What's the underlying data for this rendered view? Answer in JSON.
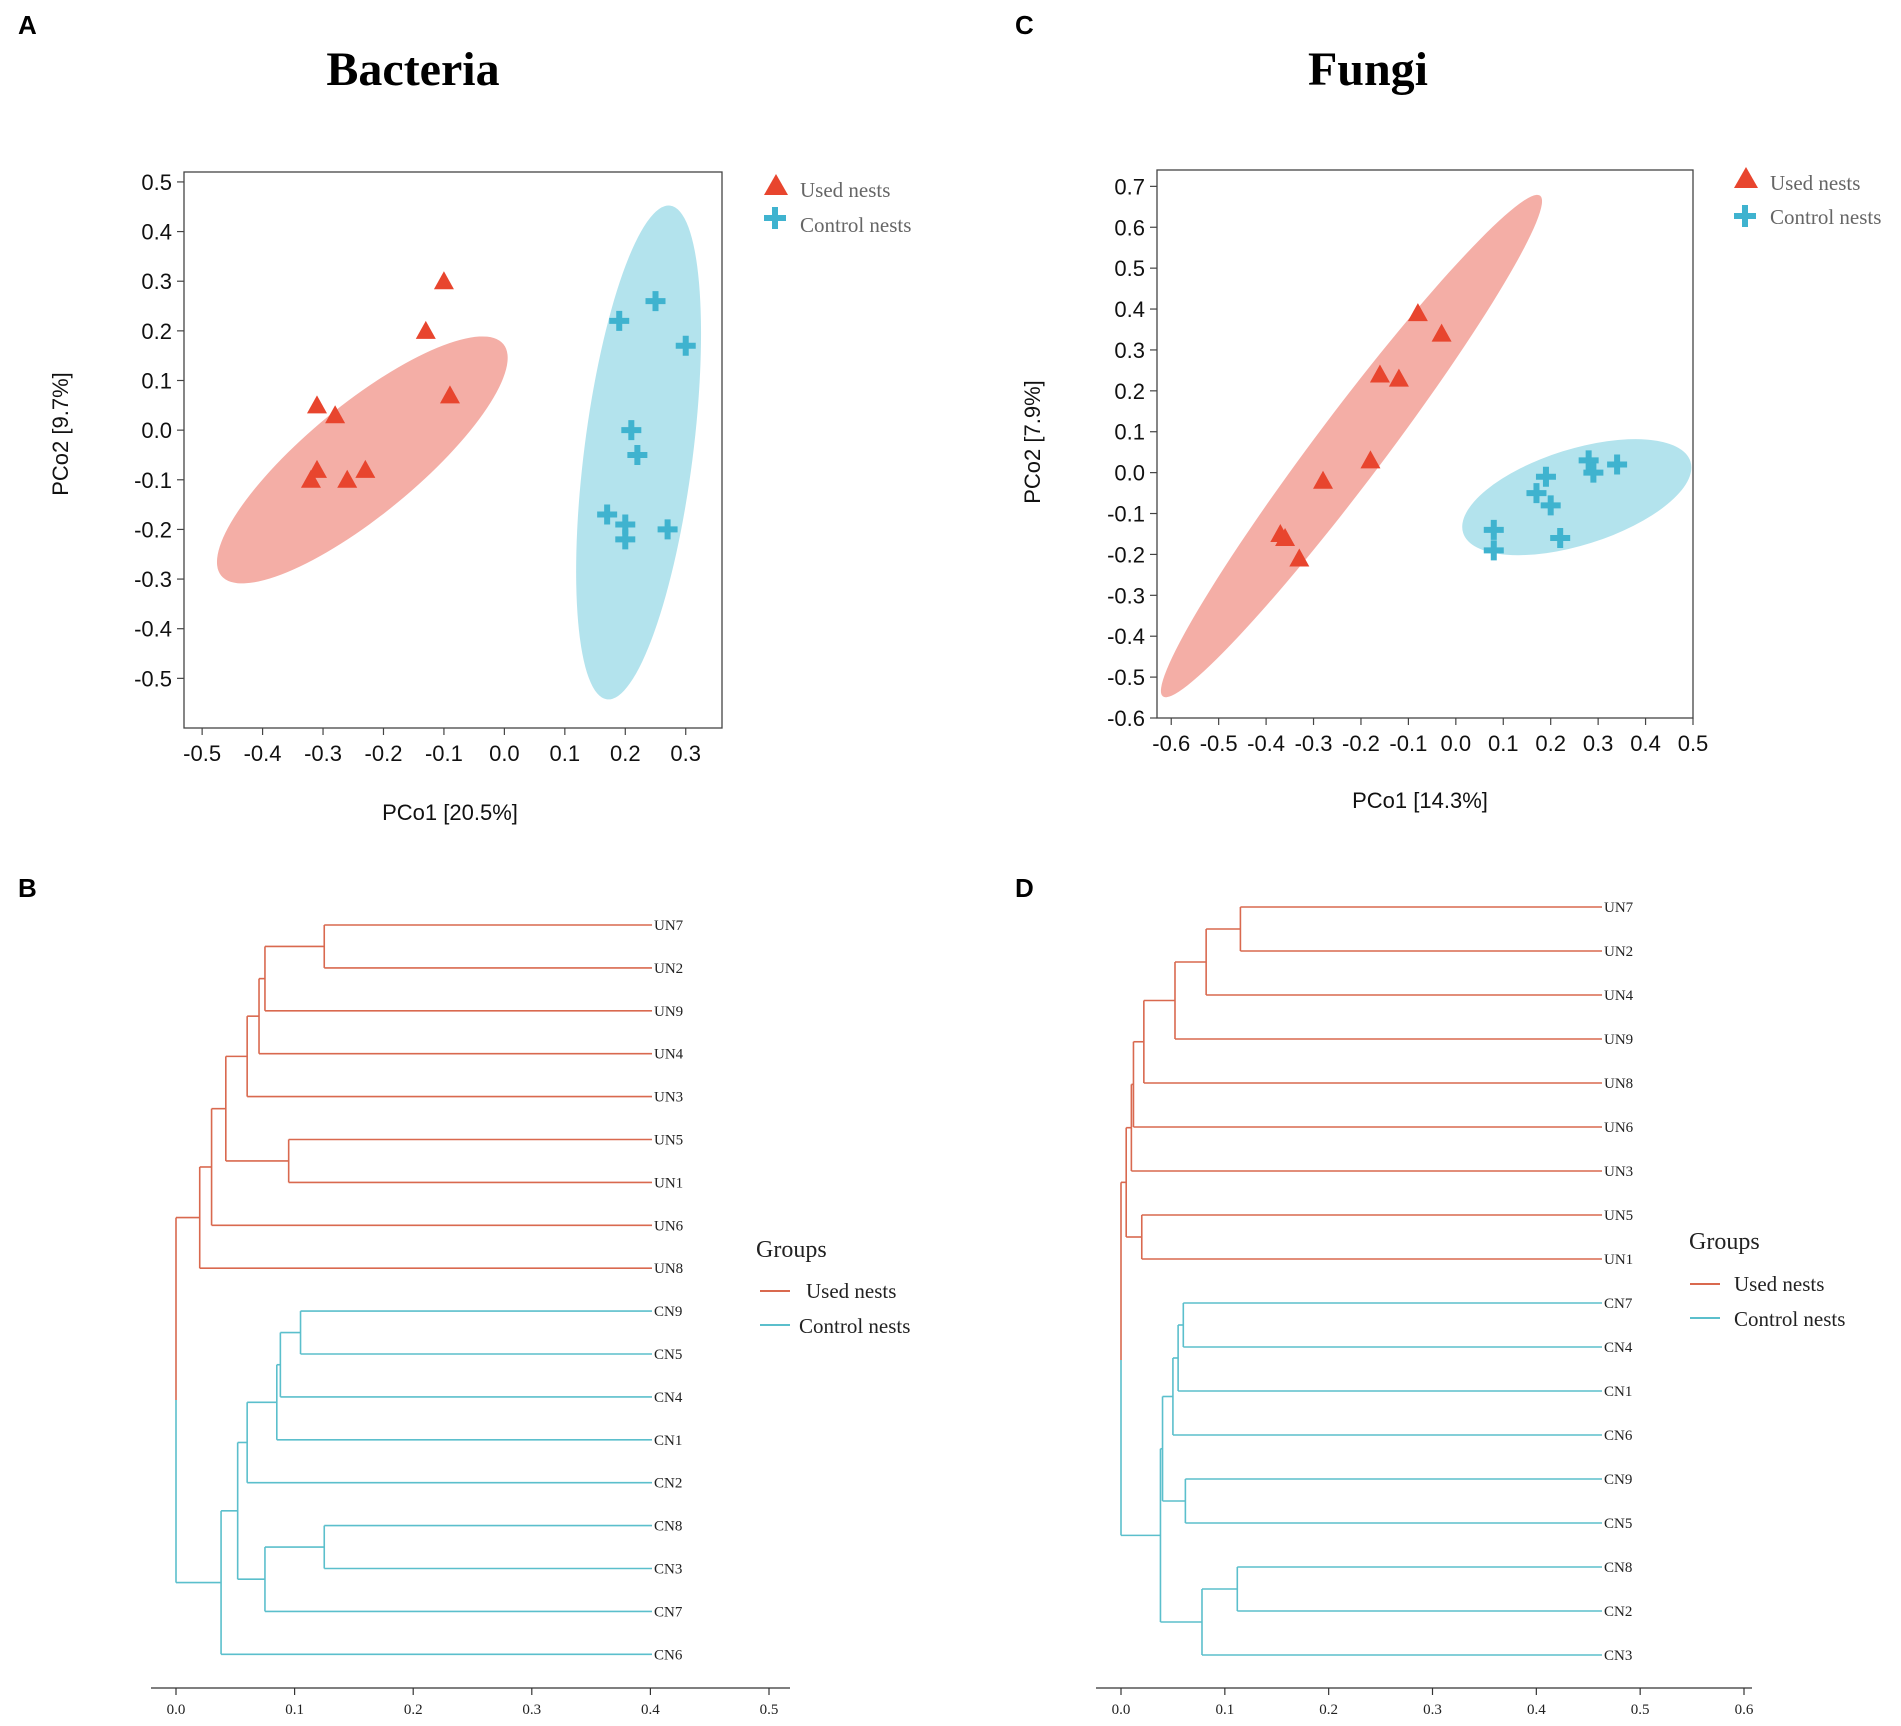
{
  "colors": {
    "used": "#E8452E",
    "control": "#3FB3CF",
    "used_ellipse": "#F2A097",
    "control_ellipse": "#A6DEEA",
    "used_line": "#D9694F",
    "control_line": "#5BBFCC"
  },
  "panels": {
    "A": "A",
    "B": "B",
    "C": "C",
    "D": "D"
  },
  "legend": {
    "used": "Used nests",
    "control": "Control nests",
    "groups_title": "Groups"
  },
  "chart_data": [
    {
      "id": "A",
      "type": "scatter",
      "title": "Bacteria",
      "xlabel": "PCo1 [20.5%]",
      "ylabel": "PCo2 [9.7%]",
      "xlim": [
        -0.53,
        0.36
      ],
      "ylim": [
        -0.6,
        0.52
      ],
      "xticks": [
        "-0.5",
        "-0.4",
        "-0.3",
        "-0.2",
        "-0.1",
        "0.0",
        "0.1",
        "0.2",
        "0.3"
      ],
      "xtick_values": [
        -0.5,
        -0.4,
        -0.3,
        -0.2,
        -0.1,
        0.0,
        0.1,
        0.2,
        0.3
      ],
      "yticks": [
        "0.5",
        "0.4",
        "0.3",
        "0.2",
        "0.1",
        "0.0",
        "-0.1",
        "-0.2",
        "-0.3",
        "-0.4",
        "-0.5"
      ],
      "ytick_values": [
        0.5,
        0.4,
        0.3,
        0.2,
        0.1,
        0.0,
        -0.1,
        -0.2,
        -0.3,
        -0.4,
        -0.5
      ],
      "series": [
        {
          "name": "Used nests",
          "marker": "triangle",
          "points": [
            [
              -0.1,
              0.3
            ],
            [
              -0.13,
              0.2
            ],
            [
              -0.09,
              0.07
            ],
            [
              -0.31,
              0.05
            ],
            [
              -0.28,
              0.03
            ],
            [
              -0.31,
              -0.08
            ],
            [
              -0.32,
              -0.1
            ],
            [
              -0.23,
              -0.08
            ],
            [
              -0.26,
              -0.1
            ]
          ],
          "ellipse": {
            "cx": -0.235,
            "cy": -0.06,
            "rx": 0.33,
            "ry": 0.1,
            "angle_deg": 45
          }
        },
        {
          "name": "Control nests",
          "marker": "cross",
          "points": [
            [
              0.25,
              0.26
            ],
            [
              0.19,
              0.22
            ],
            [
              0.3,
              0.17
            ],
            [
              0.21,
              0.0
            ],
            [
              0.22,
              -0.05
            ],
            [
              0.17,
              -0.17
            ],
            [
              0.2,
              -0.19
            ],
            [
              0.2,
              -0.22
            ],
            [
              0.27,
              -0.2
            ]
          ],
          "ellipse": {
            "cx": 0.222,
            "cy": -0.045,
            "rx": 0.5,
            "ry": 0.09,
            "angle_deg": 84
          }
        }
      ]
    },
    {
      "id": "C",
      "type": "scatter",
      "title": "Fungi",
      "xlabel": "PCo1 [14.3%]",
      "ylabel": "PCo2 [7.9%]",
      "xlim": [
        -0.63,
        0.5
      ],
      "ylim": [
        -0.6,
        0.74
      ],
      "xticks": [
        "-0.6",
        "-0.5",
        "-0.4",
        "-0.3",
        "-0.2",
        "-0.1",
        "0.0",
        "0.1",
        "0.2",
        "0.3",
        "0.4",
        "0.5"
      ],
      "xtick_values": [
        -0.6,
        -0.5,
        -0.4,
        -0.3,
        -0.2,
        -0.1,
        0.0,
        0.1,
        0.2,
        0.3,
        0.4,
        0.5
      ],
      "yticks": [
        "0.7",
        "0.6",
        "0.5",
        "0.4",
        "0.3",
        "0.2",
        "0.1",
        "0.0",
        "-0.1",
        "-0.2",
        "-0.3",
        "-0.4",
        "-0.5",
        "-0.6"
      ],
      "ytick_values": [
        0.7,
        0.6,
        0.5,
        0.4,
        0.3,
        0.2,
        0.1,
        0.0,
        -0.1,
        -0.2,
        -0.3,
        -0.4,
        -0.5,
        -0.6
      ],
      "series": [
        {
          "name": "Used nests",
          "marker": "triangle",
          "points": [
            [
              -0.08,
              0.39
            ],
            [
              -0.03,
              0.34
            ],
            [
              -0.16,
              0.24
            ],
            [
              -0.12,
              0.23
            ],
            [
              -0.18,
              0.03
            ],
            [
              -0.28,
              -0.02
            ],
            [
              -0.37,
              -0.15
            ],
            [
              -0.36,
              -0.16
            ],
            [
              -0.33,
              -0.21
            ]
          ],
          "ellipse": {
            "cx": -0.22,
            "cy": 0.065,
            "rx": 0.73,
            "ry": 0.075,
            "angle_deg": 57
          }
        },
        {
          "name": "Control nests",
          "marker": "cross",
          "points": [
            [
              0.28,
              0.03
            ],
            [
              0.34,
              0.02
            ],
            [
              0.29,
              0.0
            ],
            [
              0.19,
              -0.01
            ],
            [
              0.17,
              -0.05
            ],
            [
              0.2,
              -0.08
            ],
            [
              0.08,
              -0.14
            ],
            [
              0.22,
              -0.16
            ],
            [
              0.08,
              -0.19
            ]
          ],
          "ellipse": {
            "cx": 0.255,
            "cy": -0.06,
            "rx": 0.255,
            "ry": 0.115,
            "angle_deg": 20
          }
        }
      ]
    },
    {
      "id": "B",
      "type": "dendrogram",
      "xlim": [
        0,
        0.5
      ],
      "xticks": [
        "0.0",
        "0.1",
        "0.2",
        "0.3",
        "0.4",
        "0.5"
      ],
      "xtick_values": [
        0,
        0.1,
        0.2,
        0.3,
        0.4,
        0.5
      ],
      "leaves": [
        "UN7",
        "UN2",
        "UN9",
        "UN4",
        "UN3",
        "UN5",
        "UN1",
        "UN6",
        "UN8",
        "CN9",
        "CN5",
        "CN4",
        "CN1",
        "CN2",
        "CN8",
        "CN3",
        "CN7",
        "CN6"
      ],
      "merges": [
        {
          "a": 0,
          "b": 1,
          "h": 0.125,
          "group": "used"
        },
        {
          "a": "n0",
          "b": 2,
          "h": 0.075,
          "group": "used"
        },
        {
          "a": "n1",
          "b": 3,
          "h": 0.07,
          "group": "used"
        },
        {
          "a": "n2",
          "b": 4,
          "h": 0.06,
          "group": "used"
        },
        {
          "a": 5,
          "b": 6,
          "h": 0.095,
          "group": "used"
        },
        {
          "a": "n3",
          "b": "n4",
          "h": 0.042,
          "group": "used"
        },
        {
          "a": "n5",
          "b": 7,
          "h": 0.03,
          "group": "used"
        },
        {
          "a": "n6",
          "b": 8,
          "h": 0.02,
          "group": "used"
        },
        {
          "a": 9,
          "b": 10,
          "h": 0.105,
          "group": "control"
        },
        {
          "a": "n8",
          "b": 11,
          "h": 0.088,
          "group": "control"
        },
        {
          "a": "n9",
          "b": 12,
          "h": 0.085,
          "group": "control"
        },
        {
          "a": "n10",
          "b": 13,
          "h": 0.06,
          "group": "control"
        },
        {
          "a": 14,
          "b": 15,
          "h": 0.125,
          "group": "control"
        },
        {
          "a": "n12",
          "b": 16,
          "h": 0.075,
          "group": "control"
        },
        {
          "a": "n11",
          "b": "n13",
          "h": 0.052,
          "group": "control"
        },
        {
          "a": "n14",
          "b": 17,
          "h": 0.038,
          "group": "control"
        },
        {
          "a": "n7",
          "b": "n15",
          "h": 0.0,
          "group": "split"
        }
      ]
    },
    {
      "id": "D",
      "type": "dendrogram",
      "xlim": [
        0,
        0.6
      ],
      "xticks": [
        "0.0",
        "0.1",
        "0.2",
        "0.3",
        "0.4",
        "0.5",
        "0.6"
      ],
      "xtick_values": [
        0,
        0.1,
        0.2,
        0.3,
        0.4,
        0.5,
        0.6
      ],
      "leaves": [
        "UN7",
        "UN2",
        "UN4",
        "UN9",
        "UN8",
        "UN6",
        "UN3",
        "UN5",
        "UN1",
        "CN7",
        "CN4",
        "CN1",
        "CN6",
        "CN9",
        "CN5",
        "CN8",
        "CN2",
        "CN3"
      ],
      "merges": [
        {
          "a": 0,
          "b": 1,
          "h": 0.115,
          "group": "used"
        },
        {
          "a": "n0",
          "b": 2,
          "h": 0.082,
          "group": "used"
        },
        {
          "a": "n1",
          "b": 3,
          "h": 0.052,
          "group": "used"
        },
        {
          "a": "n2",
          "b": 4,
          "h": 0.022,
          "group": "used"
        },
        {
          "a": "n3",
          "b": 5,
          "h": 0.012,
          "group": "used"
        },
        {
          "a": "n4",
          "b": 6,
          "h": 0.01,
          "group": "used"
        },
        {
          "a": 7,
          "b": 8,
          "h": 0.02,
          "group": "used"
        },
        {
          "a": "n5",
          "b": "n6",
          "h": 0.005,
          "group": "used"
        },
        {
          "a": 9,
          "b": 10,
          "h": 0.06,
          "group": "control"
        },
        {
          "a": "n8",
          "b": 11,
          "h": 0.055,
          "group": "control"
        },
        {
          "a": "n9",
          "b": 12,
          "h": 0.05,
          "group": "control"
        },
        {
          "a": 13,
          "b": 14,
          "h": 0.062,
          "group": "control"
        },
        {
          "a": "n10",
          "b": "n11",
          "h": 0.04,
          "group": "control"
        },
        {
          "a": 15,
          "b": 16,
          "h": 0.112,
          "group": "control"
        },
        {
          "a": "n13",
          "b": 17,
          "h": 0.078,
          "group": "control"
        },
        {
          "a": "n12",
          "b": "n14",
          "h": 0.038,
          "group": "control"
        },
        {
          "a": "n7",
          "b": "n15",
          "h": 0.0,
          "group": "split"
        }
      ]
    }
  ]
}
